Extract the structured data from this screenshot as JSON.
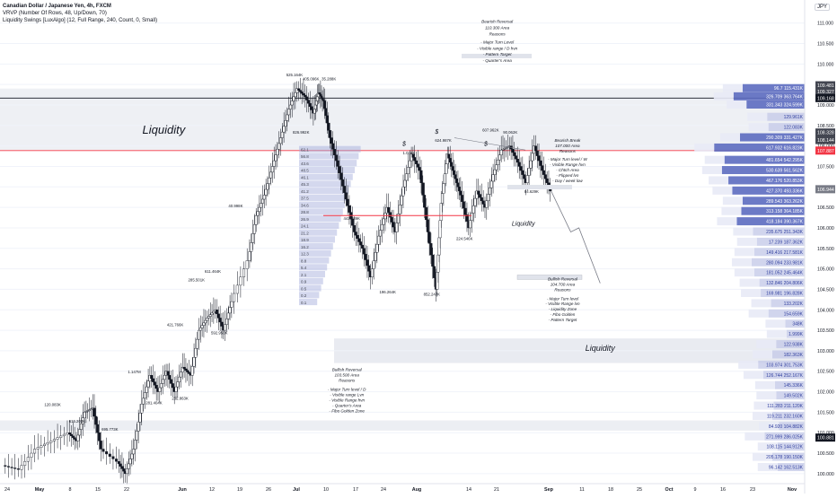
{
  "header": {
    "title": "Canadian Dollar / Japanese Yen, 4h, FXCM",
    "indicator_1": "VRVP (Number Of Rows, 48, Up/Down, 70)",
    "indicator_2": "Liquidity Swings [LuxAlgo] (12, Full Range, 240, Count, 0, Small)",
    "currency": "JPY"
  },
  "chart_data": {
    "type": "candlestick",
    "title": "Canadian Dollar / Japanese Yen, 4h, FXCM",
    "xlabel": "",
    "ylabel": "",
    "x_ticks": [
      "24",
      "May",
      "8",
      "15",
      "22",
      "Jun",
      "12",
      "19",
      "26",
      "Jul",
      "10",
      "17",
      "24",
      "Aug",
      "14",
      "21",
      "Sep",
      "11",
      "18",
      "25",
      "Oct",
      "9",
      "16",
      "23",
      "Nov"
    ],
    "y_ticks": [
      100.0,
      100.5,
      101.0,
      101.5,
      102.0,
      102.5,
      103.0,
      103.5,
      104.0,
      104.5,
      105.0,
      105.5,
      106.0,
      106.5,
      107.0,
      107.5,
      108.0,
      108.5,
      109.0,
      109.5,
      110.0,
      110.5,
      111.0
    ],
    "ylim": [
      99.8,
      111.3
    ],
    "price_labels": [
      {
        "value": 109.481,
        "text": "109.481",
        "color": "#434651"
      },
      {
        "value": 109.327,
        "text": "109.327",
        "color": "#434651"
      },
      {
        "value": 109.168,
        "text": "109.168",
        "color": "#131722"
      },
      {
        "value": 108.328,
        "text": "108.328",
        "color": "#434651"
      },
      {
        "value": 108.144,
        "text": "108.144",
        "color": "#434651"
      },
      {
        "value": 107.887,
        "text": "107.887",
        "color": "#f23645"
      },
      {
        "value": 106.944,
        "text": "106.944",
        "color": "#787b86"
      },
      {
        "value": 100.881,
        "text": "100.881",
        "color": "#131722"
      }
    ],
    "price_path": [
      [
        0.0,
        100.2
      ],
      [
        1.0,
        100.1
      ],
      [
        2.0,
        100.6
      ],
      [
        3.0,
        100.8
      ],
      [
        4.0,
        101.0
      ],
      [
        4.5,
        100.8
      ],
      [
        5.0,
        101.5
      ],
      [
        5.5,
        101.6
      ],
      [
        6.0,
        100.6
      ],
      [
        7.0,
        100.3
      ],
      [
        7.5,
        100.0
      ],
      [
        8.0,
        100.6
      ],
      [
        8.5,
        101.7
      ],
      [
        9.0,
        102.4
      ],
      [
        9.5,
        102.0
      ],
      [
        10.0,
        102.5
      ],
      [
        10.5,
        102.0
      ],
      [
        11.0,
        102.6
      ],
      [
        11.5,
        102.4
      ],
      [
        12.0,
        103.5
      ],
      [
        12.5,
        103.8
      ],
      [
        13.0,
        104.0
      ],
      [
        13.5,
        103.5
      ],
      [
        14.0,
        104.2
      ],
      [
        15.0,
        105.2
      ],
      [
        15.5,
        106.3
      ],
      [
        16.0,
        106.8
      ],
      [
        16.5,
        107.5
      ],
      [
        17.0,
        108.2
      ],
      [
        17.5,
        108.9
      ],
      [
        18.0,
        109.4
      ],
      [
        18.5,
        109.2
      ],
      [
        19.0,
        108.8
      ],
      [
        19.3,
        109.3
      ],
      [
        19.6,
        109.1
      ],
      [
        20.0,
        108.2
      ],
      [
        20.5,
        107.5
      ],
      [
        21.0,
        106.7
      ],
      [
        21.5,
        105.9
      ],
      [
        22.0,
        105.5
      ],
      [
        22.5,
        104.8
      ],
      [
        23.0,
        105.8
      ],
      [
        23.5,
        106.5
      ],
      [
        24.0,
        105.9
      ],
      [
        24.5,
        107.0
      ],
      [
        25.0,
        107.8
      ],
      [
        25.5,
        107.4
      ],
      [
        26.0,
        105.9
      ],
      [
        26.5,
        104.5
      ],
      [
        26.8,
        106.6
      ],
      [
        27.2,
        107.8
      ],
      [
        27.6,
        107.3
      ],
      [
        28.0,
        106.8
      ],
      [
        28.5,
        106.0
      ],
      [
        29.0,
        106.9
      ],
      [
        29.5,
        106.5
      ],
      [
        30.0,
        107.3
      ],
      [
        30.5,
        107.9
      ],
      [
        31.0,
        108.0
      ],
      [
        31.5,
        107.6
      ],
      [
        32.0,
        107.1
      ],
      [
        32.5,
        108.0
      ],
      [
        33.0,
        107.4
      ],
      [
        33.5,
        106.9
      ]
    ],
    "liquidity_zones": [
      {
        "label": "Liquidity",
        "low": 107.9,
        "high": 109.4
      },
      {
        "label": "Liquidity",
        "low": 102.7,
        "high": 103.3
      }
    ],
    "annotations": [
      {
        "text": "Bearish Reversal",
        "x": 30.2,
        "y": 111.0
      },
      {
        "text": "110.300 Area",
        "x": 30.2,
        "y": 110.85
      },
      {
        "text": "Reasons",
        "x": 30.2,
        "y": 110.7
      },
      {
        "text": "- Major Turn Level",
        "x": 30.2,
        "y": 110.5
      },
      {
        "text": "- Visible range / D hvn",
        "x": 30.2,
        "y": 110.35
      },
      {
        "text": "- Pattern Target",
        "x": 30.2,
        "y": 110.2
      },
      {
        "text": "- Quarter's Area",
        "x": 30.2,
        "y": 110.05
      },
      {
        "text": "Bearish Break",
        "x": 34.5,
        "y": 108.1
      },
      {
        "text": "107.000 Area",
        "x": 34.5,
        "y": 107.97
      },
      {
        "text": "Reasons",
        "x": 34.5,
        "y": 107.84
      },
      {
        "text": "- Major Turn level / W",
        "x": 34.5,
        "y": 107.64
      },
      {
        "text": "- Visible Range hvn",
        "x": 34.5,
        "y": 107.51
      },
      {
        "text": "- Chtch Area",
        "x": 34.5,
        "y": 107.38
      },
      {
        "text": "- Flipped lvn",
        "x": 34.5,
        "y": 107.25
      },
      {
        "text": "- Day / week low",
        "x": 34.5,
        "y": 107.12
      },
      {
        "text": "Bullish Reversal",
        "x": 34.2,
        "y": 104.72
      },
      {
        "text": "104.700 Area",
        "x": 34.2,
        "y": 104.59
      },
      {
        "text": "Reasons",
        "x": 34.2,
        "y": 104.46
      },
      {
        "text": "- Major Turn level",
        "x": 34.2,
        "y": 104.24
      },
      {
        "text": "- Visible Range lvn",
        "x": 34.2,
        "y": 104.11
      },
      {
        "text": "- Liquidity Zone",
        "x": 34.2,
        "y": 103.98
      },
      {
        "text": "- Fibo Golden",
        "x": 34.2,
        "y": 103.85
      },
      {
        "text": "- Pattern Target",
        "x": 34.2,
        "y": 103.72
      },
      {
        "text": "Bullish Reversal",
        "x": 21.0,
        "y": 102.5
      },
      {
        "text": "103.500 Area",
        "x": 21.0,
        "y": 102.37
      },
      {
        "text": "Reasons",
        "x": 21.0,
        "y": 102.24
      },
      {
        "text": "- Major Turn level / D",
        "x": 21.0,
        "y": 102.02
      },
      {
        "text": "- Visible range Lvn",
        "x": 21.0,
        "y": 101.89
      },
      {
        "text": "- Visible Range hvn",
        "x": 21.0,
        "y": 101.76
      },
      {
        "text": "- Quarter's Area",
        "x": 21.0,
        "y": 101.63
      },
      {
        "text": "- Fibo Golden Zone",
        "x": 21.0,
        "y": 101.5
      },
      {
        "text": "Liquidity",
        "x": 9.8,
        "y": 108.3
      },
      {
        "text": "Liquidity",
        "x": 31.8,
        "y": 106.05
      },
      {
        "text": "Liquidity",
        "x": 36.5,
        "y": 103.0
      },
      {
        "text": "$",
        "x": 24.5,
        "y": 108.0
      },
      {
        "text": "$",
        "x": 26.5,
        "y": 108.3
      },
      {
        "text": "$",
        "x": 29.5,
        "y": 108.0
      }
    ],
    "swing_labels": [
      {
        "text": "120.083K",
        "x": 3.0,
        "y": 101.65
      },
      {
        "text": "616.203K",
        "x": 4.5,
        "y": 101.25
      },
      {
        "text": "695.773K",
        "x": 6.5,
        "y": 101.05
      },
      {
        "text": "1.147M",
        "x": 8.0,
        "y": 102.45
      },
      {
        "text": "281.404K",
        "x": 9.2,
        "y": 101.7
      },
      {
        "text": "262.863K",
        "x": 10.8,
        "y": 101.8
      },
      {
        "text": "421.766K",
        "x": 10.5,
        "y": 103.6
      },
      {
        "text": "285.501K",
        "x": 11.8,
        "y": 104.7
      },
      {
        "text": "611.464K",
        "x": 12.8,
        "y": 104.9
      },
      {
        "text": "592.950K",
        "x": 13.2,
        "y": 103.4
      },
      {
        "text": "40.998K",
        "x": 14.2,
        "y": 106.5
      },
      {
        "text": "525.164K",
        "x": 17.8,
        "y": 109.7
      },
      {
        "text": "405.096K",
        "x": 18.8,
        "y": 109.6
      },
      {
        "text": "35.288K",
        "x": 19.9,
        "y": 109.6
      },
      {
        "text": "826.992K",
        "x": 18.2,
        "y": 108.3
      },
      {
        "text": "441.489K",
        "x": 21.3,
        "y": 106.2
      },
      {
        "text": "196.264K",
        "x": 23.5,
        "y": 104.4
      },
      {
        "text": "852.247K",
        "x": 26.2,
        "y": 104.35
      },
      {
        "text": "224.546K",
        "x": 28.2,
        "y": 105.7
      },
      {
        "text": "1.076K",
        "x": 24.8,
        "y": 107.8
      },
      {
        "text": "624.987K",
        "x": 26.9,
        "y": 108.1
      },
      {
        "text": "607.962K",
        "x": 29.8,
        "y": 108.35
      },
      {
        "text": "90.062K",
        "x": 31.0,
        "y": 108.3
      },
      {
        "text": "84.629K",
        "x": 32.3,
        "y": 106.85
      }
    ],
    "vrvp_left_labels": [
      "62.1",
      "56.8",
      "43.6",
      "48.5",
      "46.1",
      "45.3",
      "41.2",
      "37.5",
      "34.6",
      "28.8",
      "26.9",
      "24.1",
      "21.2",
      "18.9",
      "16.2",
      "12.3",
      "8.8",
      "5.4",
      "2.1",
      "0.9",
      "0.5",
      "0.2",
      "0.1"
    ],
    "vrvp_right": [
      {
        "price": 109.4,
        "label": "96.7 115.431K",
        "value": 96
      },
      {
        "price": 109.2,
        "label": "326.709 363.764K",
        "value": 110
      },
      {
        "price": 109.0,
        "label": "331.343 324.599K",
        "value": 90
      },
      {
        "price": 108.7,
        "label": "129.961K",
        "value": 58
      },
      {
        "price": 108.45,
        "label": "122.083K",
        "value": 56
      },
      {
        "price": 108.2,
        "label": "290.309 331.427K",
        "value": 100
      },
      {
        "price": 107.95,
        "label": "617.932 616.823K",
        "value": 140
      },
      {
        "price": 107.65,
        "label": "481.654 542.295K",
        "value": 124
      },
      {
        "price": 107.4,
        "label": "530.639 561.562K",
        "value": 128
      },
      {
        "price": 107.15,
        "label": "467.176 520.853K",
        "value": 118
      },
      {
        "price": 106.9,
        "label": "427.370 493.336K",
        "value": 112
      },
      {
        "price": 106.65,
        "label": "289.543 363.262K",
        "value": 96
      },
      {
        "price": 106.4,
        "label": "313.158 364.185K",
        "value": 98
      },
      {
        "price": 106.15,
        "label": "418.184 390.367K",
        "value": 105
      },
      {
        "price": 105.9,
        "label": "235.675 251.343K",
        "value": 80
      },
      {
        "price": 105.65,
        "label": "17.239 187.362K",
        "value": 74
      },
      {
        "price": 105.4,
        "label": "149.416 217.581K",
        "value": 78
      },
      {
        "price": 105.15,
        "label": "280.094 233.981K",
        "value": 82
      },
      {
        "price": 104.9,
        "label": "181.052 245.464K",
        "value": 78
      },
      {
        "price": 104.65,
        "label": "132.846 204.806K",
        "value": 70
      },
      {
        "price": 104.4,
        "label": "169.981 196.828K",
        "value": 68
      },
      {
        "price": 104.15,
        "label": "133.202K",
        "value": 52
      },
      {
        "price": 103.9,
        "label": "154.659K",
        "value": 56
      },
      {
        "price": 103.65,
        "label": "348K",
        "value": 30
      },
      {
        "price": 103.4,
        "label": "1.999K",
        "value": 28
      },
      {
        "price": 103.15,
        "label": "122.938K",
        "value": 44
      },
      {
        "price": 102.9,
        "label": "182.363K",
        "value": 50
      },
      {
        "price": 102.65,
        "label": "103.974 301.753K",
        "value": 72
      },
      {
        "price": 102.4,
        "label": "126.744 252.167K",
        "value": 64
      },
      {
        "price": 102.15,
        "label": "145.336K",
        "value": 46
      },
      {
        "price": 101.9,
        "label": "149.502K",
        "value": 44
      },
      {
        "price": 101.65,
        "label": "111.283 211.120K",
        "value": 48
      },
      {
        "price": 101.4,
        "label": "119.211 232.160K",
        "value": 50
      },
      {
        "price": 101.15,
        "label": "84.920 104.882K",
        "value": 40
      },
      {
        "price": 100.9,
        "label": "271.999 286.025K",
        "value": 62
      },
      {
        "price": 100.65,
        "label": "108.115 144.912K",
        "value": 42
      },
      {
        "price": 100.4,
        "label": "205.178 190.150K",
        "value": 50
      },
      {
        "price": 100.15,
        "label": "96.142 162.513K",
        "value": 42
      }
    ],
    "horizontal_lines": [
      {
        "price": 109.168,
        "color": "#131722"
      },
      {
        "price": 107.887,
        "color": "#f23645"
      }
    ],
    "scenario_path": [
      [
        33.5,
        106.9
      ],
      [
        34.7,
        105.9
      ],
      [
        35.2,
        106.0
      ],
      [
        36.5,
        104.65
      ]
    ]
  }
}
